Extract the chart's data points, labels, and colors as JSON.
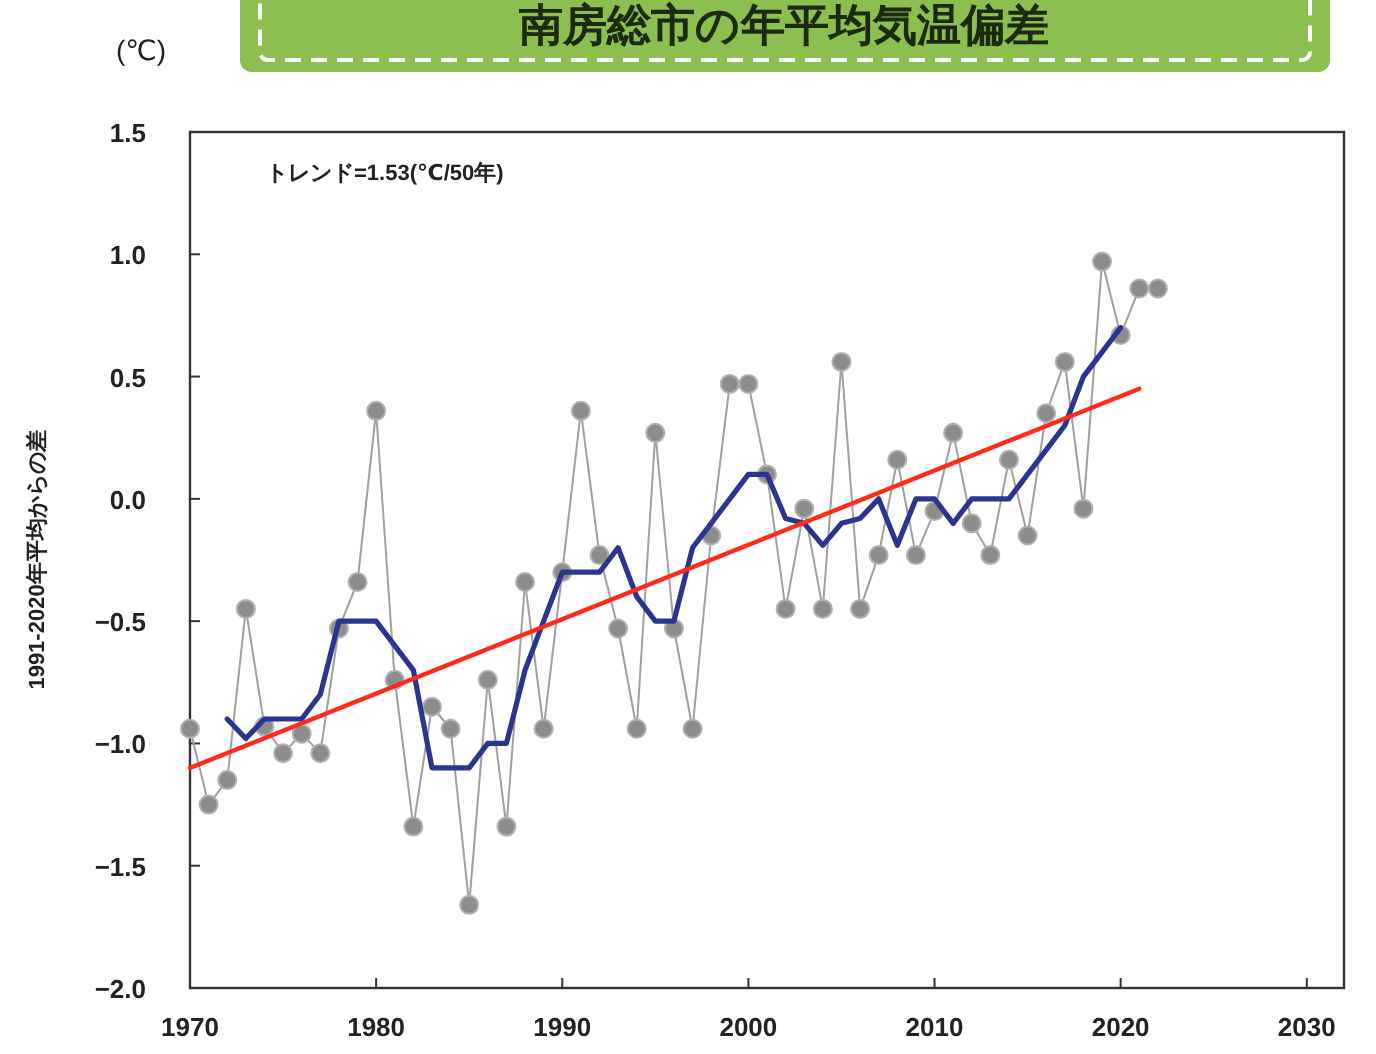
{
  "chart_data": {
    "type": "line",
    "title": "南房総市の年平均気温偏差",
    "ylabel": "1991-2020年平均からの差",
    "annotations": [
      "(℃)",
      "トレンド=1.53(℃/50年)"
    ],
    "xlim": [
      1970,
      2032
    ],
    "xticks": [
      1970,
      1980,
      1990,
      2000,
      2010,
      2020,
      2030
    ],
    "ylim": [
      -2,
      1.5
    ],
    "yticks": [
      {
        "value": -2,
        "label": "−2.0"
      },
      {
        "value": -1.5,
        "label": "−1.5"
      },
      {
        "value": -1,
        "label": "−1.0"
      },
      {
        "value": -0.5,
        "label": "−0.5"
      },
      {
        "value": 0,
        "label": "0.0"
      },
      {
        "value": 0.5,
        "label": "0.5"
      },
      {
        "value": 1,
        "label": "1.0"
      },
      {
        "value": 1.5,
        "label": "1.5"
      }
    ],
    "grid": false,
    "series": [
      {
        "color": "#a0a0a0",
        "marker": "circle",
        "x": [
          1970,
          1971,
          1972,
          1973,
          1974,
          1975,
          1976,
          1977,
          1978,
          1979,
          1980,
          1981,
          1982,
          1983,
          1984,
          1985,
          1986,
          1987,
          1988,
          1989,
          1990,
          1991,
          1992,
          1993,
          1994,
          1995,
          1996,
          1997,
          1998,
          1999,
          2000,
          2001,
          2002,
          2003,
          2004,
          2005,
          2006,
          2007,
          2008,
          2009,
          2010,
          2011,
          2012,
          2013,
          2014,
          2015,
          2016,
          2017,
          2018,
          2019,
          2020,
          2021,
          2022
        ],
        "values": [
          -0.94,
          -1.25,
          -1.15,
          -0.45,
          -0.93,
          -1.04,
          -0.96,
          -1.04,
          -0.53,
          -0.34,
          0.36,
          -0.74,
          -1.34,
          -0.85,
          -0.94,
          -1.66,
          -0.74,
          -1.34,
          -0.34,
          -0.94,
          -0.3,
          0.36,
          -0.23,
          -0.53,
          -0.94,
          0.27,
          -0.53,
          -0.94,
          -0.15,
          0.47,
          0.47,
          0.1,
          -0.45,
          -0.04,
          -0.45,
          0.56,
          -0.45,
          -0.23,
          0.16,
          -0.23,
          -0.05,
          0.27,
          -0.1,
          -0.23,
          0.16,
          -0.15,
          0.35,
          0.56,
          -0.04,
          0.97,
          0.67,
          0.86,
          0.86
        ]
      },
      {
        "color": "#2b3590",
        "marker": "none",
        "x": [
          1972,
          1973,
          1974,
          1975,
          1976,
          1977,
          1978,
          1979,
          1980,
          1981,
          1982,
          1983,
          1984,
          1985,
          1986,
          1987,
          1988,
          1989,
          1990,
          1991,
          1992,
          1993,
          1994,
          1995,
          1996,
          1997,
          1998,
          1999,
          2000,
          2001,
          2002,
          2003,
          2004,
          2005,
          2006,
          2007,
          2008,
          2009,
          2010,
          2011,
          2012,
          2013,
          2014,
          2015,
          2016,
          2017,
          2018,
          2019,
          2020
        ],
        "values": [
          -0.9,
          -0.98,
          -0.9,
          -0.9,
          -0.9,
          -0.8,
          -0.5,
          -0.5,
          -0.5,
          -0.6,
          -0.7,
          -1.1,
          -1.1,
          -1.1,
          -1.0,
          -1.0,
          -0.7,
          -0.5,
          -0.3,
          -0.3,
          -0.3,
          -0.2,
          -0.4,
          -0.5,
          -0.5,
          -0.2,
          -0.1,
          0.0,
          0.1,
          0.1,
          -0.08,
          -0.1,
          -0.19,
          -0.1,
          -0.08,
          0.0,
          -0.19,
          0.0,
          0.0,
          -0.1,
          0.0,
          0.0,
          0.0,
          0.1,
          0.2,
          0.3,
          0.5,
          0.6,
          0.7
        ]
      },
      {
        "color": "#ff2a1a",
        "marker": "none",
        "x": [
          1970,
          2021
        ],
        "values": [
          -1.1,
          0.45
        ]
      }
    ]
  }
}
